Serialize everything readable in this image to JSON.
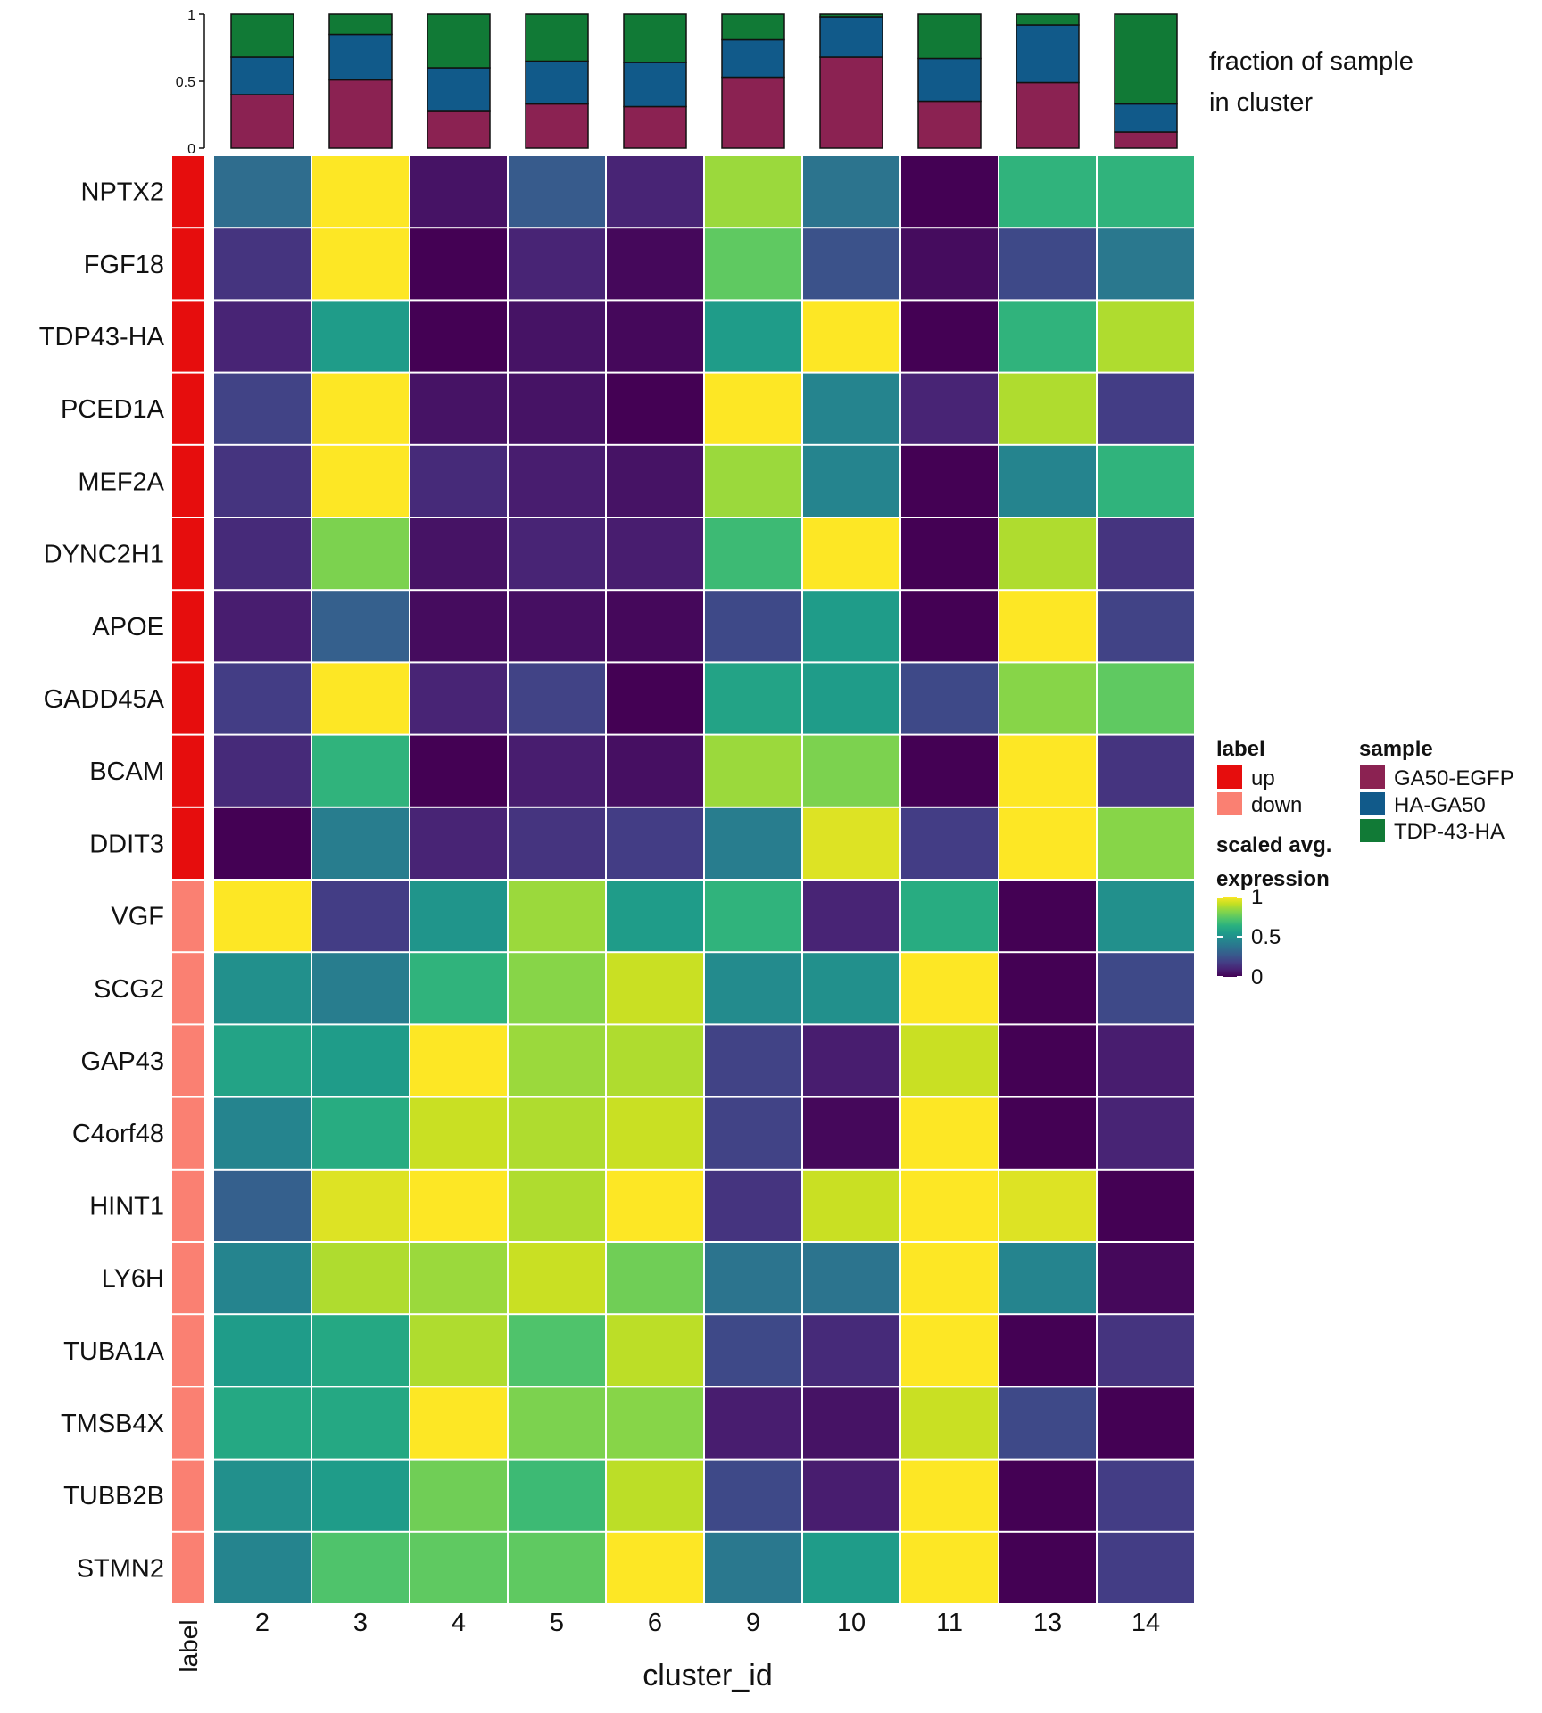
{
  "chart_data": {
    "type": "heatmap",
    "xlabel": "cluster_id",
    "label_axis_title": "label",
    "clusters": [
      "2",
      "3",
      "4",
      "5",
      "6",
      "9",
      "10",
      "11",
      "13",
      "14"
    ],
    "genes": [
      "NPTX2",
      "FGF18",
      "TDP43-HA",
      "PCED1A",
      "MEF2A",
      "DYNC2H1",
      "APOE",
      "GADD45A",
      "BCAM",
      "DDIT3",
      "VGF",
      "SCG2",
      "GAP43",
      "C4orf48",
      "HINT1",
      "LY6H",
      "TUBA1A",
      "TMSB4X",
      "TUBB2B",
      "STMN2"
    ],
    "gene_labels": [
      "up",
      "up",
      "up",
      "up",
      "up",
      "up",
      "up",
      "up",
      "up",
      "up",
      "down",
      "down",
      "down",
      "down",
      "down",
      "down",
      "down",
      "down",
      "down",
      "down"
    ],
    "values": [
      [
        0.35,
        1.0,
        0.05,
        0.28,
        0.1,
        0.85,
        0.38,
        0.0,
        0.65,
        0.65
      ],
      [
        0.15,
        1.0,
        0.0,
        0.1,
        0.02,
        0.75,
        0.25,
        0.03,
        0.22,
        0.4
      ],
      [
        0.1,
        0.55,
        0.0,
        0.05,
        0.02,
        0.55,
        1.0,
        0.0,
        0.65,
        0.88
      ],
      [
        0.2,
        1.0,
        0.05,
        0.05,
        0.0,
        1.0,
        0.45,
        0.1,
        0.88,
        0.18
      ],
      [
        0.15,
        1.0,
        0.12,
        0.08,
        0.05,
        0.85,
        0.45,
        0.0,
        0.45,
        0.65
      ],
      [
        0.12,
        0.8,
        0.05,
        0.1,
        0.08,
        0.68,
        1.0,
        0.0,
        0.88,
        0.15
      ],
      [
        0.08,
        0.3,
        0.03,
        0.04,
        0.02,
        0.22,
        0.55,
        0.0,
        1.0,
        0.2
      ],
      [
        0.18,
        1.0,
        0.1,
        0.2,
        0.0,
        0.58,
        0.55,
        0.22,
        0.82,
        0.75
      ],
      [
        0.12,
        0.65,
        0.0,
        0.08,
        0.04,
        0.85,
        0.8,
        0.0,
        1.0,
        0.15
      ],
      [
        0.0,
        0.42,
        0.1,
        0.15,
        0.18,
        0.42,
        0.95,
        0.18,
        1.0,
        0.82
      ],
      [
        1.0,
        0.18,
        0.52,
        0.85,
        0.55,
        0.65,
        0.1,
        0.62,
        0.0,
        0.5
      ],
      [
        0.5,
        0.42,
        0.65,
        0.82,
        0.92,
        0.48,
        0.5,
        1.0,
        0.0,
        0.22
      ],
      [
        0.58,
        0.55,
        1.0,
        0.85,
        0.88,
        0.2,
        0.08,
        0.92,
        0.0,
        0.08
      ],
      [
        0.45,
        0.62,
        0.92,
        0.88,
        0.92,
        0.2,
        0.02,
        1.0,
        0.0,
        0.1
      ],
      [
        0.3,
        0.95,
        1.0,
        0.88,
        1.0,
        0.15,
        0.92,
        1.0,
        0.95,
        0.0
      ],
      [
        0.45,
        0.88,
        0.85,
        0.92,
        0.78,
        0.38,
        0.38,
        1.0,
        0.45,
        0.02
      ],
      [
        0.55,
        0.6,
        0.88,
        0.72,
        0.9,
        0.22,
        0.12,
        1.0,
        0.0,
        0.15
      ],
      [
        0.6,
        0.6,
        1.0,
        0.8,
        0.82,
        0.08,
        0.05,
        0.92,
        0.22,
        0.0
      ],
      [
        0.5,
        0.55,
        0.78,
        0.68,
        0.9,
        0.22,
        0.08,
        1.0,
        0.0,
        0.18
      ],
      [
        0.45,
        0.72,
        0.75,
        0.75,
        1.0,
        0.4,
        0.55,
        1.0,
        0.0,
        0.18
      ]
    ],
    "top_bar": {
      "title_line1": "fraction of sample",
      "title_line2": "in cluster",
      "ticks": [
        "0",
        "0.5",
        "1"
      ],
      "ylim": [
        0,
        1
      ],
      "fractions": [
        {
          "GA50-EGFP": 0.4,
          "HA-GA50": 0.28,
          "TDP-43-HA": 0.32
        },
        {
          "GA50-EGFP": 0.51,
          "HA-GA50": 0.34,
          "TDP-43-HA": 0.15
        },
        {
          "GA50-EGFP": 0.28,
          "HA-GA50": 0.32,
          "TDP-43-HA": 0.4
        },
        {
          "GA50-EGFP": 0.33,
          "HA-GA50": 0.32,
          "TDP-43-HA": 0.35
        },
        {
          "GA50-EGFP": 0.31,
          "HA-GA50": 0.33,
          "TDP-43-HA": 0.36
        },
        {
          "GA50-EGFP": 0.53,
          "HA-GA50": 0.28,
          "TDP-43-HA": 0.19
        },
        {
          "GA50-EGFP": 0.68,
          "HA-GA50": 0.3,
          "TDP-43-HA": 0.02
        },
        {
          "GA50-EGFP": 0.35,
          "HA-GA50": 0.32,
          "TDP-43-HA": 0.33
        },
        {
          "GA50-EGFP": 0.49,
          "HA-GA50": 0.43,
          "TDP-43-HA": 0.08
        },
        {
          "GA50-EGFP": 0.12,
          "HA-GA50": 0.21,
          "TDP-43-HA": 0.67
        }
      ]
    },
    "legend": {
      "label_title": "label",
      "label_items": [
        {
          "name": "up",
          "color": "#e60d0d"
        },
        {
          "name": "down",
          "color": "#fa8072"
        }
      ],
      "sample_title": "sample",
      "sample_items": [
        {
          "name": "GA50-EGFP",
          "color": "#8b2252"
        },
        {
          "name": "HA-GA50",
          "color": "#115a8a"
        },
        {
          "name": "TDP-43-HA",
          "color": "#117a36"
        }
      ],
      "scale_title_line1": "scaled avg.",
      "scale_title_line2": "expression",
      "scale_ticks": [
        "0",
        "0.5",
        "1"
      ]
    },
    "colormap": "viridis"
  }
}
